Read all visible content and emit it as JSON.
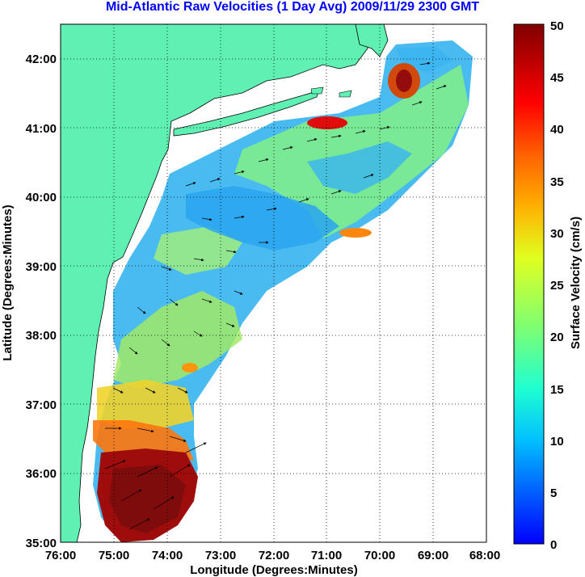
{
  "title": "Mid-Atlantic Raw Velocities (1 Day Avg) 2009/11/29 2300 GMT",
  "x_axis": {
    "label": "Longitude (Degrees:Minutes)",
    "ticks": [
      "76:00",
      "75:00",
      "74:00",
      "73:00",
      "72:00",
      "71:00",
      "70:00",
      "69:00",
      "68:00"
    ]
  },
  "y_axis": {
    "label": "Latitude (Degrees:Minutes)",
    "ticks": [
      "35:00",
      "36:00",
      "37:00",
      "38:00",
      "39:00",
      "40:00",
      "41:00",
      "42:00"
    ]
  },
  "colorbar": {
    "label": "Surface Velocity (cm/s)",
    "ticks": [
      "0",
      "5",
      "10",
      "15",
      "20",
      "25",
      "30",
      "35",
      "40",
      "45",
      "50"
    ],
    "range": [
      0,
      50
    ]
  },
  "colors": {
    "land": "#5ff0b4",
    "ocean": "#ffffff",
    "grid": "#000000"
  }
}
